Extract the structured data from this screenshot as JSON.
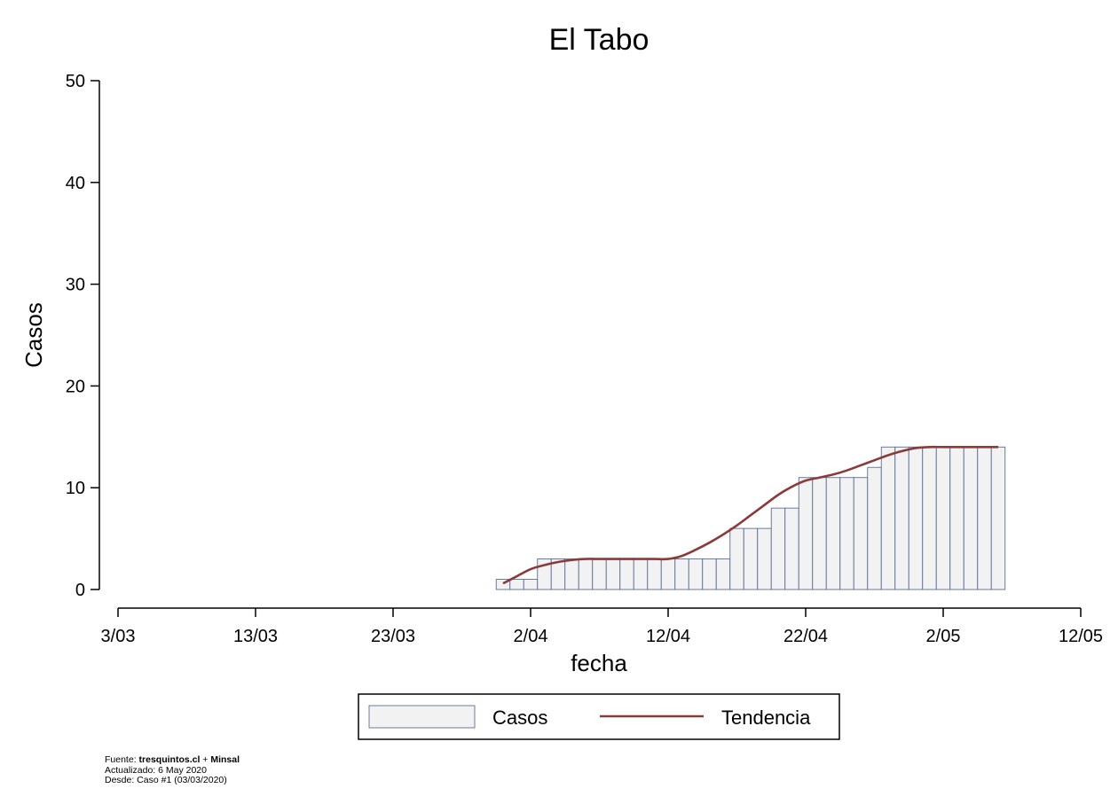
{
  "chart_data": {
    "type": "bar",
    "title": "El Tabo",
    "xlabel": "fecha",
    "ylabel": "Casos",
    "ylim": [
      0,
      50
    ],
    "yticks": [
      0,
      10,
      20,
      30,
      40,
      50
    ],
    "xlim": [
      "2020-03-03",
      "2020-05-12"
    ],
    "xticks": [
      {
        "date": "2020-03-03",
        "label": "3/03"
      },
      {
        "date": "2020-03-13",
        "label": "13/03"
      },
      {
        "date": "2020-03-23",
        "label": "23/03"
      },
      {
        "date": "2020-04-02",
        "label": "2/04"
      },
      {
        "date": "2020-04-12",
        "label": "12/04"
      },
      {
        "date": "2020-04-22",
        "label": "22/04"
      },
      {
        "date": "2020-05-02",
        "label": "2/05"
      },
      {
        "date": "2020-05-12",
        "label": "12/05"
      }
    ],
    "grid": false,
    "legend_position": "bottom",
    "series": [
      {
        "name": "Casos",
        "type": "bar",
        "color": "#f2f2f2",
        "edge_color": "#5a6f93",
        "x": [
          "2020-03-31",
          "2020-04-01",
          "2020-04-02",
          "2020-04-03",
          "2020-04-04",
          "2020-04-05",
          "2020-04-06",
          "2020-04-07",
          "2020-04-08",
          "2020-04-09",
          "2020-04-10",
          "2020-04-11",
          "2020-04-12",
          "2020-04-13",
          "2020-04-14",
          "2020-04-15",
          "2020-04-16",
          "2020-04-17",
          "2020-04-18",
          "2020-04-19",
          "2020-04-20",
          "2020-04-21",
          "2020-04-22",
          "2020-04-23",
          "2020-04-24",
          "2020-04-25",
          "2020-04-26",
          "2020-04-27",
          "2020-04-28",
          "2020-04-29",
          "2020-04-30",
          "2020-05-01",
          "2020-05-02",
          "2020-05-03",
          "2020-05-04",
          "2020-05-05",
          "2020-05-06"
        ],
        "values": [
          1,
          1,
          1,
          3,
          3,
          3,
          3,
          3,
          3,
          3,
          3,
          3,
          3,
          3,
          3,
          3,
          3,
          6,
          6,
          6,
          8,
          8,
          11,
          11,
          11,
          11,
          11,
          12,
          14,
          14,
          14,
          14,
          14,
          14,
          14,
          14,
          14
        ]
      },
      {
        "name": "Tendencia",
        "type": "line",
        "color": "#8b3a3a",
        "x": [
          "2020-03-31",
          "2020-04-01",
          "2020-04-02",
          "2020-04-03",
          "2020-04-04",
          "2020-04-05",
          "2020-04-06",
          "2020-04-07",
          "2020-04-08",
          "2020-04-09",
          "2020-04-10",
          "2020-04-11",
          "2020-04-12",
          "2020-04-13",
          "2020-04-14",
          "2020-04-15",
          "2020-04-16",
          "2020-04-17",
          "2020-04-18",
          "2020-04-19",
          "2020-04-20",
          "2020-04-21",
          "2020-04-22",
          "2020-04-23",
          "2020-04-24",
          "2020-04-25",
          "2020-04-26",
          "2020-04-27",
          "2020-04-28",
          "2020-04-29",
          "2020-04-30",
          "2020-05-01",
          "2020-05-02",
          "2020-05-03",
          "2020-05-04",
          "2020-05-05",
          "2020-05-06"
        ],
        "values": [
          0.6,
          1.3,
          2.0,
          2.4,
          2.7,
          2.9,
          3.0,
          3.0,
          3.0,
          3.0,
          3.0,
          3.0,
          3.0,
          3.3,
          3.9,
          4.6,
          5.4,
          6.3,
          7.3,
          8.3,
          9.3,
          10.1,
          10.7,
          11.0,
          11.3,
          11.7,
          12.2,
          12.7,
          13.2,
          13.6,
          13.9,
          14.0,
          14.0,
          14.0,
          14.0,
          14.0,
          14.0
        ]
      }
    ]
  },
  "legend": {
    "items": [
      {
        "label": "Casos"
      },
      {
        "label": "Tendencia"
      }
    ]
  },
  "footer": {
    "source_prefix": "Fuente: ",
    "source_site": "tresquintos.cl",
    "source_plus": " + ",
    "source_org": "Minsal",
    "updated": "Actualizado: 6 May 2020",
    "since": "Desde: Caso #1   (03/03/2020)"
  }
}
